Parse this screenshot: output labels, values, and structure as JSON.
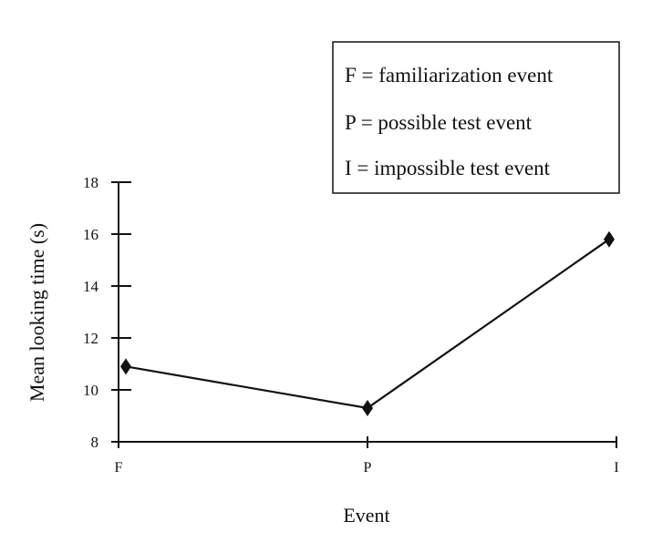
{
  "chart_data": {
    "type": "line",
    "categories": [
      "F",
      "P",
      "I"
    ],
    "series": [
      {
        "values": [
          10.9,
          9.3,
          15.8
        ]
      }
    ],
    "xlabel": "Event",
    "ylabel": "Mean looking time (s)",
    "ylim": [
      8,
      18
    ],
    "yticks": [
      8,
      10,
      12,
      14,
      16,
      18
    ],
    "grid": false,
    "marker": "diamond",
    "legend": {
      "placement": "top-right",
      "entries": [
        "F = familiarization event",
        "P = possible test event",
        "I = impossible test event"
      ]
    }
  }
}
